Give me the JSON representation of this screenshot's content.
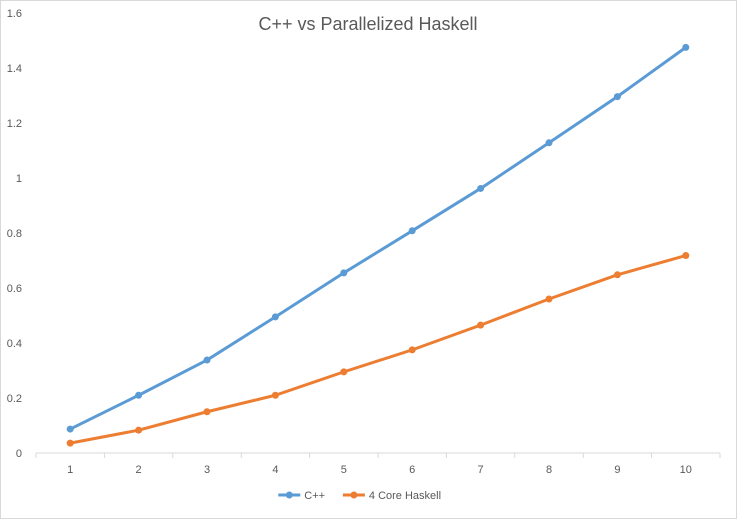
{
  "chart_data": {
    "type": "line",
    "title": "C++ vs Parallelized Haskell",
    "xlabel": "",
    "ylabel": "",
    "x": [
      1,
      2,
      3,
      4,
      5,
      6,
      7,
      8,
      9,
      10
    ],
    "ylim": [
      0,
      1.6
    ],
    "yticks": [
      "0",
      "0.2",
      "0.4",
      "0.6",
      "0.8",
      "1",
      "1.2",
      "1.4",
      "1.6"
    ],
    "ytick_values": [
      0,
      0.2,
      0.4,
      0.6,
      0.8,
      1.0,
      1.2,
      1.4,
      1.6
    ],
    "grid": false,
    "legend_position": "bottom",
    "series": [
      {
        "name": "C++",
        "color": "#5b9bd5",
        "values": [
          0.087,
          0.21,
          0.338,
          0.495,
          0.655,
          0.808,
          0.962,
          1.128,
          1.296,
          1.475
        ]
      },
      {
        "name": "4 Core Haskell",
        "color": "#ed7d31",
        "values": [
          0.036,
          0.083,
          0.15,
          0.21,
          0.295,
          0.375,
          0.465,
          0.56,
          0.648,
          0.718
        ]
      }
    ]
  }
}
